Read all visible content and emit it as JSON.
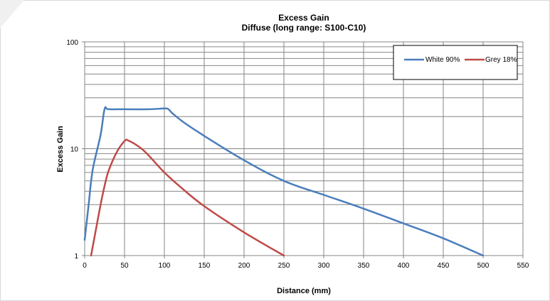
{
  "chart_data": {
    "type": "line",
    "title": "Excess Gain",
    "subtitle": "Diffuse (long range: S100-C10)",
    "xlabel": "Distance (mm)",
    "ylabel": "Excess Gain",
    "xlim": [
      0,
      550
    ],
    "ylim": [
      1,
      100
    ],
    "y_scale": "log",
    "x_ticks": [
      "0",
      "50",
      "100",
      "150",
      "200",
      "250",
      "300",
      "350",
      "400",
      "450",
      "500",
      "550"
    ],
    "y_ticks": [
      "1",
      "10",
      "100"
    ],
    "grid": true,
    "legend_position": "top-right",
    "series": [
      {
        "name": "White 90%",
        "color": "#4a7ebb",
        "x": [
          0,
          5,
          10,
          20,
          25,
          30,
          50,
          80,
          100,
          105,
          110,
          125,
          150,
          200,
          250,
          300,
          350,
          400,
          450,
          500
        ],
        "y": [
          1.4,
          3.0,
          6.3,
          13.5,
          23.5,
          23.4,
          23.4,
          23.4,
          23.8,
          23.5,
          21.5,
          17.5,
          13.2,
          7.8,
          5.0,
          3.7,
          2.75,
          2.0,
          1.45,
          1.0
        ]
      },
      {
        "name": "Grey 18%",
        "color": "#be4b48",
        "x": [
          8,
          10,
          15,
          20,
          25,
          30,
          40,
          50,
          55,
          70,
          80,
          100,
          120,
          150,
          200,
          250
        ],
        "y": [
          1.0,
          1.2,
          1.9,
          3.0,
          4.5,
          6.2,
          9.2,
          11.8,
          11.9,
          10.2,
          8.7,
          6.0,
          4.4,
          2.9,
          1.65,
          1.0
        ]
      }
    ]
  }
}
